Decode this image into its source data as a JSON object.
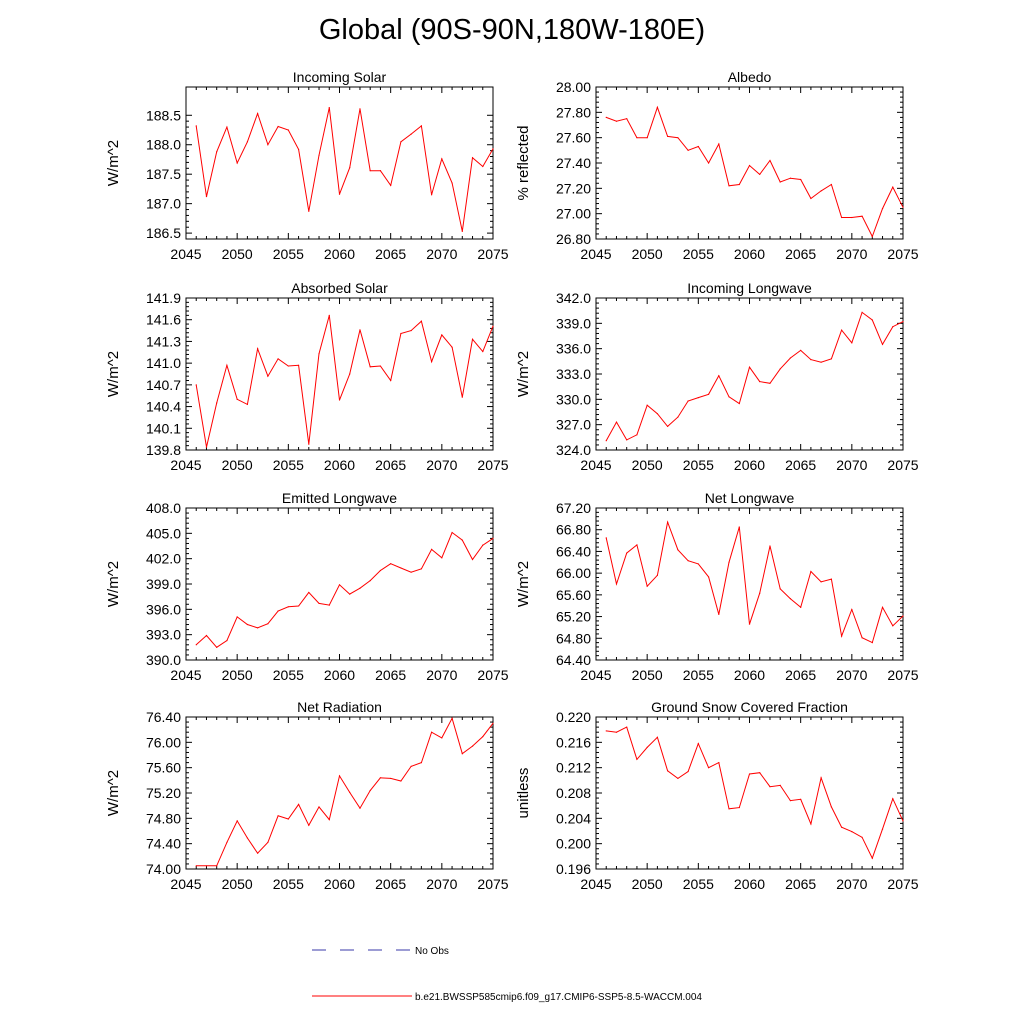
{
  "title": "Global (90S-90N,180W-180E)",
  "colors": {
    "model_line": "#ff0000",
    "obs_line": "#3a3aa8",
    "axis": "#000000"
  },
  "legend": {
    "obs_label": "No Obs",
    "model_label": "b.e21.BWSSP585cmip6.f09_g17.CMIP6-SSP5-8.5-WACCM.004"
  },
  "chart_data": [
    {
      "type": "line",
      "title": "Incoming Solar",
      "ylabel": "W/m^2",
      "xlim": [
        2045,
        2075
      ],
      "ylim": [
        186.4,
        188.98
      ],
      "xticks": [
        2045,
        2050,
        2055,
        2060,
        2065,
        2070,
        2075
      ],
      "yticks": [
        186.5,
        187.0,
        187.5,
        188.0,
        188.5
      ],
      "yfmt": 1,
      "x": [
        2046,
        2047,
        2048,
        2049,
        2050,
        2051,
        2052,
        2053,
        2054,
        2055,
        2056,
        2057,
        2058,
        2059,
        2060,
        2061,
        2062,
        2063,
        2064,
        2065,
        2066,
        2067,
        2068,
        2069,
        2070,
        2071,
        2072,
        2073,
        2074,
        2075
      ],
      "values": [
        188.32,
        187.12,
        187.88,
        188.3,
        187.69,
        188.05,
        188.53,
        188.0,
        188.31,
        188.25,
        187.92,
        186.87,
        187.82,
        188.63,
        187.16,
        187.61,
        188.61,
        187.56,
        187.56,
        187.31,
        188.05,
        188.18,
        188.32,
        187.15,
        187.76,
        187.35,
        186.53,
        187.78,
        187.63,
        187.93
      ]
    },
    {
      "type": "line",
      "title": "Albedo",
      "ylabel": "% reflected",
      "xlim": [
        2045,
        2075
      ],
      "ylim": [
        26.8,
        28.0
      ],
      "xticks": [
        2045,
        2050,
        2055,
        2060,
        2065,
        2070,
        2075
      ],
      "yticks": [
        26.8,
        27.0,
        27.2,
        27.4,
        27.6,
        27.8,
        28.0
      ],
      "yfmt": 2,
      "x": [
        2046,
        2047,
        2048,
        2049,
        2050,
        2051,
        2052,
        2053,
        2054,
        2055,
        2056,
        2057,
        2058,
        2059,
        2060,
        2061,
        2062,
        2063,
        2064,
        2065,
        2066,
        2067,
        2068,
        2069,
        2070,
        2071,
        2072,
        2073,
        2074,
        2075
      ],
      "values": [
        27.76,
        27.73,
        27.75,
        27.6,
        27.6,
        27.84,
        27.61,
        27.6,
        27.5,
        27.53,
        27.4,
        27.55,
        27.22,
        27.23,
        27.38,
        27.31,
        27.42,
        27.25,
        27.28,
        27.27,
        27.12,
        27.18,
        27.23,
        26.97,
        26.97,
        26.98,
        26.82,
        27.04,
        27.21,
        27.05
      ]
    },
    {
      "type": "line",
      "title": "Absorbed Solar",
      "ylabel": "W/m^2",
      "xlim": [
        2045,
        2075
      ],
      "ylim": [
        139.8,
        141.9
      ],
      "xticks": [
        2045,
        2050,
        2055,
        2060,
        2065,
        2070,
        2075
      ],
      "yticks": [
        139.8,
        140.1,
        140.4,
        140.7,
        141.0,
        141.3,
        141.6,
        141.9
      ],
      "yfmt": 1,
      "x": [
        2046,
        2047,
        2048,
        2049,
        2050,
        2051,
        2052,
        2053,
        2054,
        2055,
        2056,
        2057,
        2058,
        2059,
        2060,
        2061,
        2062,
        2063,
        2064,
        2065,
        2066,
        2067,
        2068,
        2069,
        2070,
        2071,
        2072,
        2073,
        2074,
        2075
      ],
      "values": [
        140.7,
        139.84,
        140.45,
        140.97,
        140.5,
        140.43,
        141.2,
        140.82,
        141.06,
        140.96,
        140.97,
        139.88,
        141.13,
        141.66,
        140.49,
        140.85,
        141.46,
        140.95,
        140.96,
        140.76,
        141.41,
        141.45,
        141.58,
        141.02,
        141.39,
        141.22,
        140.53,
        141.33,
        141.16,
        141.51
      ]
    },
    {
      "type": "line",
      "title": "Incoming Longwave",
      "ylabel": "W/m^2",
      "xlim": [
        2045,
        2075
      ],
      "ylim": [
        324.0,
        342.0
      ],
      "xticks": [
        2045,
        2050,
        2055,
        2060,
        2065,
        2070,
        2075
      ],
      "yticks": [
        324.0,
        327.0,
        330.0,
        333.0,
        336.0,
        339.0,
        342.0
      ],
      "yfmt": 1,
      "x": [
        2046,
        2047,
        2048,
        2049,
        2050,
        2051,
        2052,
        2053,
        2054,
        2055,
        2056,
        2057,
        2058,
        2059,
        2060,
        2061,
        2062,
        2063,
        2064,
        2065,
        2066,
        2067,
        2068,
        2069,
        2070,
        2071,
        2072,
        2073,
        2074,
        2075
      ],
      "values": [
        325.1,
        327.3,
        325.2,
        325.8,
        329.3,
        328.3,
        326.8,
        327.9,
        329.8,
        330.2,
        330.6,
        332.8,
        330.3,
        329.5,
        333.8,
        332.1,
        331.9,
        333.6,
        334.9,
        335.8,
        334.7,
        334.4,
        334.8,
        338.2,
        336.7,
        340.3,
        339.4,
        336.5,
        338.6,
        339.2
      ]
    },
    {
      "type": "line",
      "title": "Emitted Longwave",
      "ylabel": "W/m^2",
      "xlim": [
        2045,
        2075
      ],
      "ylim": [
        390.0,
        408.0
      ],
      "xticks": [
        2045,
        2050,
        2055,
        2060,
        2065,
        2070,
        2075
      ],
      "yticks": [
        390.0,
        393.0,
        396.0,
        399.0,
        402.0,
        405.0,
        408.0
      ],
      "yfmt": 1,
      "x": [
        2046,
        2047,
        2048,
        2049,
        2050,
        2051,
        2052,
        2053,
        2054,
        2055,
        2056,
        2057,
        2058,
        2059,
        2060,
        2061,
        2062,
        2063,
        2064,
        2065,
        2066,
        2067,
        2068,
        2069,
        2070,
        2071,
        2072,
        2073,
        2074,
        2075
      ],
      "values": [
        391.8,
        392.9,
        391.5,
        392.3,
        395.1,
        394.2,
        393.8,
        394.3,
        395.8,
        396.3,
        396.4,
        398.0,
        396.7,
        396.5,
        398.9,
        397.8,
        398.5,
        399.4,
        400.6,
        401.4,
        400.9,
        400.4,
        400.8,
        403.1,
        402.1,
        405.1,
        404.2,
        401.9,
        403.6,
        404.4
      ]
    },
    {
      "type": "line",
      "title": "Net Longwave",
      "ylabel": "W/m^2",
      "xlim": [
        2045,
        2075
      ],
      "ylim": [
        64.4,
        67.2
      ],
      "xticks": [
        2045,
        2050,
        2055,
        2060,
        2065,
        2070,
        2075
      ],
      "yticks": [
        64.4,
        64.8,
        65.2,
        65.6,
        66.0,
        66.4,
        66.8,
        67.2
      ],
      "yfmt": 2,
      "x": [
        2046,
        2047,
        2048,
        2049,
        2050,
        2051,
        2052,
        2053,
        2054,
        2055,
        2056,
        2057,
        2058,
        2059,
        2060,
        2061,
        2062,
        2063,
        2064,
        2065,
        2066,
        2067,
        2068,
        2069,
        2070,
        2071,
        2072,
        2073,
        2074,
        2075
      ],
      "values": [
        66.65,
        65.8,
        66.37,
        66.52,
        65.76,
        65.96,
        66.94,
        66.43,
        66.23,
        66.17,
        65.93,
        65.24,
        66.2,
        66.85,
        65.06,
        65.63,
        66.5,
        65.71,
        65.53,
        65.37,
        66.03,
        65.84,
        65.89,
        64.84,
        65.33,
        64.81,
        64.72,
        65.37,
        65.03,
        65.21
      ]
    },
    {
      "type": "line",
      "title": "Net Radiation",
      "ylabel": "W/m^2",
      "xlim": [
        2045,
        2075
      ],
      "ylim": [
        74.0,
        76.4
      ],
      "xticks": [
        2045,
        2050,
        2055,
        2060,
        2065,
        2070,
        2075
      ],
      "yticks": [
        74.0,
        74.4,
        74.8,
        75.2,
        75.6,
        76.0,
        76.4
      ],
      "yfmt": 2,
      "x": [
        2046,
        2047,
        2048,
        2049,
        2050,
        2051,
        2052,
        2053,
        2054,
        2055,
        2056,
        2057,
        2058,
        2059,
        2060,
        2061,
        2062,
        2063,
        2064,
        2065,
        2066,
        2067,
        2068,
        2069,
        2070,
        2071,
        2072,
        2073,
        2074,
        2075
      ],
      "values": [
        74.05,
        74.05,
        74.05,
        74.42,
        74.76,
        74.49,
        74.25,
        74.42,
        74.84,
        74.79,
        75.02,
        74.69,
        74.98,
        74.78,
        75.47,
        75.21,
        74.96,
        75.24,
        75.44,
        75.43,
        75.39,
        75.62,
        75.68,
        76.16,
        76.07,
        76.38,
        75.82,
        75.94,
        76.09,
        76.3
      ]
    },
    {
      "type": "line",
      "title": "Ground Snow Covered Fraction",
      "ylabel": "unitless",
      "xlim": [
        2045,
        2075
      ],
      "ylim": [
        0.196,
        0.22
      ],
      "xticks": [
        2045,
        2050,
        2055,
        2060,
        2065,
        2070,
        2075
      ],
      "yticks": [
        0.196,
        0.2,
        0.204,
        0.208,
        0.212,
        0.216,
        0.22
      ],
      "yfmt": 3,
      "x": [
        2046,
        2047,
        2048,
        2049,
        2050,
        2051,
        2052,
        2053,
        2054,
        2055,
        2056,
        2057,
        2058,
        2059,
        2060,
        2061,
        2062,
        2063,
        2064,
        2065,
        2066,
        2067,
        2068,
        2069,
        2070,
        2071,
        2072,
        2073,
        2074,
        2075
      ],
      "values": [
        0.2178,
        0.2176,
        0.2184,
        0.2133,
        0.2152,
        0.2168,
        0.2115,
        0.2103,
        0.2114,
        0.2158,
        0.212,
        0.2128,
        0.2055,
        0.2057,
        0.211,
        0.2112,
        0.209,
        0.2092,
        0.2068,
        0.207,
        0.2031,
        0.2104,
        0.2058,
        0.2026,
        0.2019,
        0.201,
        0.1977,
        0.2023,
        0.2071,
        0.2036
      ]
    }
  ]
}
